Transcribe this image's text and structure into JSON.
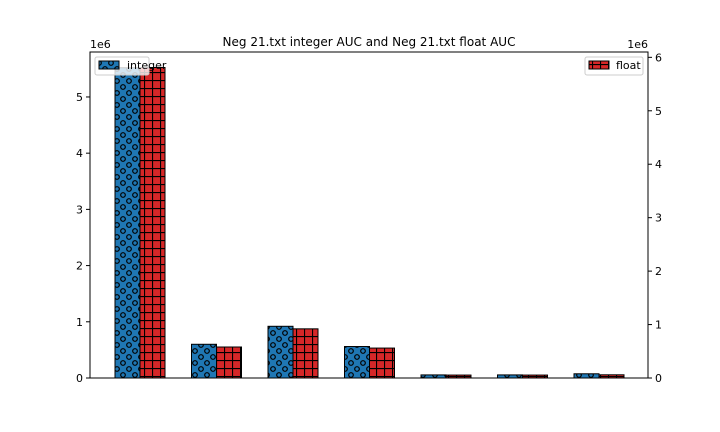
{
  "chart_data": {
    "type": "bar",
    "title": "Neg 21.txt integer AUC and Neg 21.txt float AUC",
    "categories": [
      "",
      "",
      "",
      "",
      "",
      "",
      ""
    ],
    "left_axis": {
      "scale_label": "1e6",
      "ylim": [
        0,
        5.8
      ],
      "ticks": [
        0,
        1,
        2,
        3,
        4,
        5
      ]
    },
    "right_axis": {
      "scale_label": "1e6",
      "ylim": [
        0,
        6.1
      ],
      "ticks": [
        0,
        1,
        2,
        3,
        4,
        5,
        6
      ]
    },
    "series": [
      {
        "name": "integer",
        "axis": "left",
        "color": "#1f77b4",
        "hatch": "circles",
        "legend_position": "top-left",
        "values": [
          5.52,
          0.6,
          0.92,
          0.56,
          0.055,
          0.055,
          0.075
        ]
      },
      {
        "name": "float",
        "axis": "right",
        "color": "#d62728",
        "hatch": "grid",
        "legend_position": "top-right",
        "values": [
          5.81,
          0.58,
          0.92,
          0.56,
          0.055,
          0.055,
          0.06
        ]
      }
    ],
    "grid": false
  }
}
